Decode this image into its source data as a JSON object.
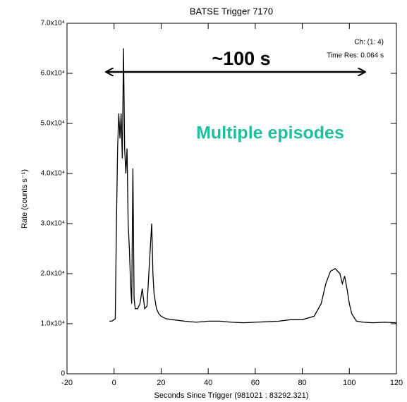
{
  "chart_data": {
    "type": "line",
    "title": "BATSE Trigger 7170",
    "x_label": "Seconds Since Trigger (981021 : 83292.321)",
    "y_label": "Rate (counts s⁻¹)",
    "annotations": [
      "~100 s",
      "Multiple episodes",
      "Ch: (1: 4)",
      "Time Res: 0.064 s"
    ],
    "color": "#000000",
    "x": [
      -2,
      -1,
      0,
      0.5,
      1,
      1.5,
      2,
      2.5,
      3,
      3.5,
      4,
      4.5,
      5,
      5.5,
      6,
      6.5,
      7,
      7.5,
      8,
      8.5,
      9,
      10,
      11,
      12,
      13,
      14,
      15,
      16,
      16.5,
      17,
      18,
      19,
      20,
      22,
      25,
      30,
      35,
      40,
      45,
      50,
      55,
      60,
      65,
      70,
      75,
      80,
      85,
      88,
      90,
      92,
      94,
      96,
      97,
      98,
      99,
      100,
      101,
      103,
      106,
      110,
      115,
      120
    ],
    "values": [
      10500,
      10500,
      10800,
      11000,
      30000,
      45000,
      52000,
      47000,
      52000,
      43000,
      65000,
      45000,
      40000,
      45000,
      30000,
      25000,
      18000,
      14000,
      41000,
      15000,
      13000,
      13000,
      14000,
      17000,
      13000,
      13500,
      22000,
      30000,
      20000,
      16000,
      13000,
      12000,
      11500,
      11000,
      10800,
      10500,
      10300,
      10500,
      10500,
      10300,
      10200,
      10300,
      10400,
      10500,
      10800,
      10800,
      11500,
      14000,
      18000,
      20500,
      21000,
      20000,
      18000,
      19500,
      17000,
      14000,
      12000,
      10500,
      10300,
      10200,
      10300,
      10200
    ],
    "xlim": [
      -20,
      120
    ],
    "xticks": [
      -20,
      0,
      20,
      40,
      60,
      80,
      100,
      120
    ],
    "ylim": [
      0,
      70000
    ],
    "yticks": [
      0,
      {
        "value": 10000,
        "label": "1.0x10⁴"
      },
      {
        "value": 20000,
        "label": "2.0x10⁴"
      },
      {
        "value": 30000,
        "label": "3.0x10⁴"
      },
      {
        "value": 40000,
        "label": "4.0x10⁴"
      },
      {
        "value": 50000,
        "label": "5.0x10⁴"
      },
      {
        "value": 60000,
        "label": "6.0x10⁴"
      },
      {
        "value": 70000,
        "label": "7.0x10⁴"
      }
    ]
  }
}
